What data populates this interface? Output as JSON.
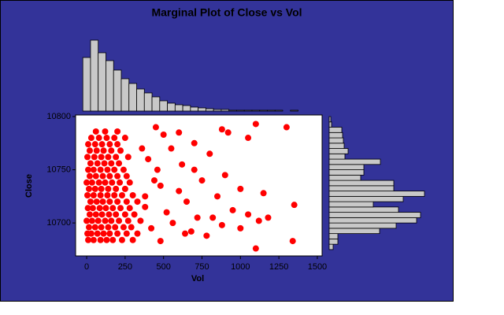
{
  "chart_data": [
    {
      "type": "scatter",
      "title": "Marginal Plot of Close vs Vol",
      "xlabel": "Vol",
      "ylabel": "Close",
      "color": "#ff0000",
      "background": "#333399",
      "xlim": [
        -72,
        1531
      ],
      "ylim": [
        10669,
        10801.5
      ],
      "xticks": [
        0,
        250,
        500,
        750,
        1000,
        1250,
        1500
      ],
      "yticks": [
        10700,
        10750,
        10800
      ],
      "x": [
        10,
        45,
        90,
        130,
        170,
        230,
        300,
        5,
        30,
        70,
        110,
        150,
        200,
        260,
        330,
        15,
        55,
        95,
        140,
        185,
        240,
        290,
        0,
        35,
        75,
        120,
        160,
        210,
        270,
        350,
        20,
        60,
        100,
        145,
        190,
        250,
        310,
        8,
        40,
        85,
        125,
        170,
        220,
        280,
        25,
        65,
        105,
        150,
        200,
        260,
        330,
        5,
        45,
        90,
        135,
        180,
        230,
        300,
        15,
        55,
        95,
        140,
        190,
        250,
        0,
        35,
        80,
        120,
        165,
        215,
        280,
        20,
        60,
        105,
        150,
        200,
        260,
        10,
        45,
        90,
        135,
        180,
        240,
        25,
        70,
        115,
        160,
        210,
        5,
        50,
        95,
        140,
        190,
        270,
        20,
        65,
        110,
        160,
        220,
        10,
        55,
        100,
        150,
        200,
        30,
        80,
        130,
        180,
        250,
        60,
        120,
        200,
        450,
        500,
        600,
        880,
        920,
        1100,
        1300,
        1050,
        700,
        550,
        800,
        400,
        620,
        900,
        750,
        480,
        1000,
        850,
        1150,
        650,
        380,
        950,
        1050,
        1350,
        720,
        560,
        1120,
        880,
        420,
        640,
        780,
        480,
        1000,
        1100,
        1340,
        520,
        440,
        600,
        360,
        700,
        820,
        680,
        380,
        460,
        1180
      ],
      "y": [
        10684,
        10684,
        10684,
        10684,
        10684,
        10684,
        10684,
        10690,
        10690,
        10690,
        10690,
        10690,
        10690,
        10690,
        10690,
        10696,
        10696,
        10696,
        10696,
        10696,
        10696,
        10696,
        10702,
        10702,
        10702,
        10702,
        10702,
        10702,
        10702,
        10702,
        10708,
        10708,
        10708,
        10708,
        10708,
        10708,
        10708,
        10714,
        10714,
        10714,
        10714,
        10714,
        10714,
        10714,
        10720,
        10720,
        10720,
        10720,
        10720,
        10720,
        10720,
        10726,
        10726,
        10726,
        10726,
        10726,
        10726,
        10726,
        10732,
        10732,
        10732,
        10732,
        10732,
        10732,
        10738,
        10738,
        10738,
        10738,
        10738,
        10738,
        10738,
        10744,
        10744,
        10744,
        10744,
        10744,
        10744,
        10750,
        10750,
        10750,
        10750,
        10750,
        10750,
        10756,
        10756,
        10756,
        10756,
        10756,
        10762,
        10762,
        10762,
        10762,
        10762,
        10762,
        10768,
        10768,
        10768,
        10768,
        10768,
        10774,
        10774,
        10774,
        10774,
        10774,
        10780,
        10780,
        10780,
        10780,
        10780,
        10786,
        10786,
        10786,
        10790,
        10783,
        10785,
        10788,
        10785,
        10793,
        10790,
        10780,
        10775,
        10770,
        10765,
        10760,
        10755,
        10745,
        10740,
        10735,
        10732,
        10725,
        10728,
        10720,
        10715,
        10712,
        10708,
        10717,
        10705,
        10700,
        10702,
        10698,
        10695,
        10690,
        10688,
        10683,
        10695,
        10676,
        10683,
        10710,
        10740,
        10730,
        10770,
        10750,
        10705,
        10692,
        10725,
        10750,
        10705
      ]
    },
    {
      "type": "histogram",
      "orientation": "vertical",
      "color": "#c8c8c8",
      "bins": [
        -25,
        25,
        75,
        125,
        175,
        225,
        275,
        325,
        375,
        425,
        475,
        525,
        575,
        625,
        675,
        725,
        775,
        825,
        875,
        925,
        975,
        1025,
        1075,
        1125,
        1175,
        1225,
        1275,
        1325,
        1375
      ],
      "counts": [
        68,
        90,
        74,
        64,
        52,
        41,
        35,
        28,
        23,
        18,
        13,
        10,
        8,
        7,
        5,
        4,
        3,
        2,
        2,
        1,
        1,
        1,
        1,
        1,
        1,
        1,
        0,
        1
      ]
    },
    {
      "type": "histogram",
      "orientation": "horizontal",
      "color": "#c8c8c8",
      "bins": [
        10675,
        10680,
        10685,
        10690,
        10695,
        10700,
        10705,
        10710,
        10715,
        10720,
        10725,
        10730,
        10735,
        10740,
        10745,
        10750,
        10755,
        10760,
        10765,
        10770,
        10775,
        10780,
        10785,
        10790,
        10795,
        10800
      ],
      "counts": [
        5,
        11,
        11,
        64,
        85,
        111,
        116,
        88,
        56,
        94,
        121,
        82,
        82,
        40,
        44,
        44,
        65,
        20,
        24,
        19,
        18,
        17,
        16,
        3,
        2
      ]
    }
  ]
}
